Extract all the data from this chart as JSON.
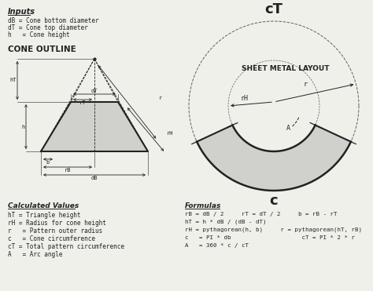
{
  "bg_color": "#f0f0eb",
  "title_inputs": "Inputs",
  "inputs_lines": [
    "dB = Cone bottom diameter",
    "dT = Cone top diameter",
    "h   = Cone height"
  ],
  "cone_outline_title": "CONE OUTLINE",
  "sheet_metal_title": "SHEET METAL LAYOUT",
  "cT_label": "cT",
  "c_label": "c",
  "calc_title": "Calculated Values",
  "calc_lines": [
    "hT = Triangle height",
    "rH = Radius for cone height",
    "r   = Pattern outer radius",
    "c   = Cone circumference",
    "cT = Total pattern circumference",
    "A   = Arc angle"
  ],
  "formulas_title": "Formulas",
  "formula_lines": [
    "rB = dB / 2     rT = dT / 2     b = rB - rT",
    "hT = h * dB / (dB - dT)",
    "rH = pythagorean(h, b)     r = pythagorean(hT, rB)",
    "c   = PI * db                    cT = PI * 2 * r",
    "A   = 360 * c / cT"
  ],
  "cone_gray": "#d0d0cc",
  "line_color": "#222222",
  "dim_color": "#333333"
}
